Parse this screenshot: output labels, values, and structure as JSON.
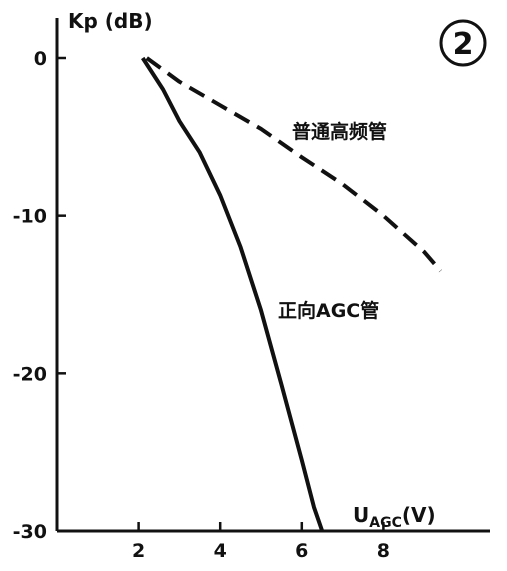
{
  "chart_data": {
    "type": "line",
    "title": "",
    "panel_marker": "2",
    "xlabel_main": "U",
    "xlabel_sub": "AGC",
    "xlabel_unit": "(V)",
    "ylabel": "Kp (dB)",
    "xlim": [
      0,
      10
    ],
    "ylim": [
      -30,
      0
    ],
    "x_ticks": [
      2,
      4,
      6,
      8
    ],
    "y_ticks": [
      0,
      -10,
      -20,
      -30
    ],
    "grid": false,
    "series": [
      {
        "name": "普通高频管",
        "style": "dashed",
        "color": "#111111",
        "x": [
          2.2,
          3.0,
          4.0,
          5.0,
          6.0,
          7.0,
          8.0,
          9.0,
          9.4
        ],
        "y": [
          0.0,
          -1.5,
          -3.0,
          -4.5,
          -6.3,
          -8.0,
          -10.0,
          -12.3,
          -13.5
        ]
      },
      {
        "name": "正向AGC管",
        "style": "solid",
        "color": "#111111",
        "x": [
          2.1,
          2.6,
          3.0,
          3.5,
          4.0,
          4.5,
          5.0,
          5.5,
          6.0,
          6.3,
          6.5
        ],
        "y": [
          0.0,
          -2.0,
          -4.0,
          -6.0,
          -8.7,
          -12.0,
          -16.0,
          -20.7,
          -25.5,
          -28.5,
          -30.0
        ]
      }
    ]
  }
}
